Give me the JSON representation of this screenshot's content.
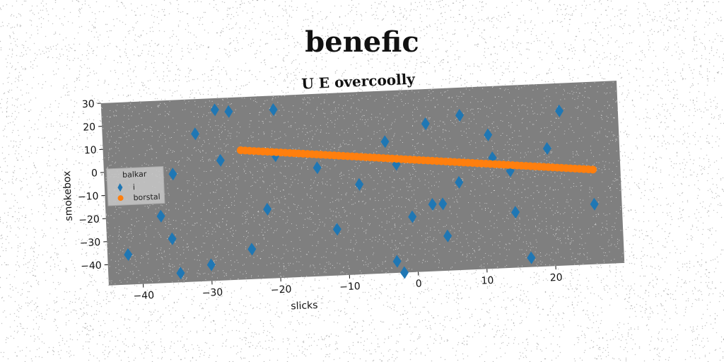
{
  "suptitle": "benefic",
  "chart_data": {
    "type": "scatter",
    "title": "U E overcoolly",
    "xlabel": "slicks",
    "ylabel": "smokebox",
    "xlim": [
      -45,
      30
    ],
    "ylim": [
      -49,
      30
    ],
    "xticks": [
      -40,
      -30,
      -20,
      -10,
      0,
      10,
      20
    ],
    "yticks": [
      -40,
      -30,
      -20,
      -10,
      0,
      10,
      20,
      30
    ],
    "legend": {
      "title": "balkar",
      "placement": "center-left"
    },
    "series": [
      {
        "name": "i",
        "marker": "diamond",
        "color": "#1f77b4",
        "points": [
          [
            -42,
            -36
          ],
          [
            -35.5,
            -30
          ],
          [
            -35,
            -2
          ],
          [
            -34.5,
            -45
          ],
          [
            -37,
            -20
          ],
          [
            -31.5,
            15
          ],
          [
            -28.5,
            25
          ],
          [
            -28,
            3
          ],
          [
            -26.5,
            24
          ],
          [
            -30,
            -42
          ],
          [
            -24,
            -36
          ],
          [
            -21.5,
            -19
          ],
          [
            -20,
            24
          ],
          [
            -20,
            4
          ],
          [
            -14,
            -2
          ],
          [
            -11.5,
            -29
          ],
          [
            -8,
            -10
          ],
          [
            -4,
            8
          ],
          [
            -3,
            -44
          ],
          [
            -2.5,
            -2
          ],
          [
            -2,
            -49
          ],
          [
            -0.5,
            -25
          ],
          [
            2,
            15
          ],
          [
            2.5,
            -20
          ],
          [
            4,
            -20
          ],
          [
            4.5,
            -34
          ],
          [
            6.5,
            -11
          ],
          [
            7,
            18
          ],
          [
            11,
            9
          ],
          [
            11.5,
            -1
          ],
          [
            14,
            -7
          ],
          [
            14.5,
            -25
          ],
          [
            16.5,
            -45
          ],
          [
            19.5,
            2
          ],
          [
            21.5,
            18
          ],
          [
            26,
            -23
          ]
        ]
      },
      {
        "name": "borstal",
        "marker": "circle",
        "color": "#ff7f0e",
        "line": {
          "x_start": -25,
          "x_end": 26,
          "y_start": 7,
          "y_end": -8,
          "count": 80
        }
      }
    ]
  }
}
